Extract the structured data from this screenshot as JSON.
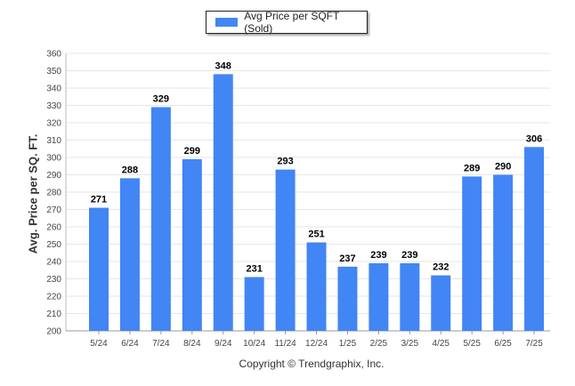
{
  "legend": {
    "label": "Avg Price per SQFT (Sold)",
    "color": "#4285f4"
  },
  "copyright": "Copyright © Trendgraphix, Inc.",
  "chart_data": {
    "type": "bar",
    "title": "",
    "xlabel": "",
    "ylabel": "Avg. Price per SQ. FT.",
    "ylim": [
      200,
      360
    ],
    "ytick_step": 10,
    "grid": true,
    "legend_position": "top-center",
    "categories": [
      "5/24",
      "6/24",
      "7/24",
      "8/24",
      "9/24",
      "10/24",
      "11/24",
      "12/24",
      "1/25",
      "2/25",
      "3/25",
      "4/25",
      "5/25",
      "6/25",
      "7/25"
    ],
    "series": [
      {
        "name": "Avg Price per SQFT (Sold)",
        "color": "#4285f4",
        "values": [
          271,
          288,
          329,
          299,
          348,
          231,
          293,
          251,
          237,
          239,
          239,
          232,
          289,
          290,
          306
        ]
      }
    ]
  }
}
